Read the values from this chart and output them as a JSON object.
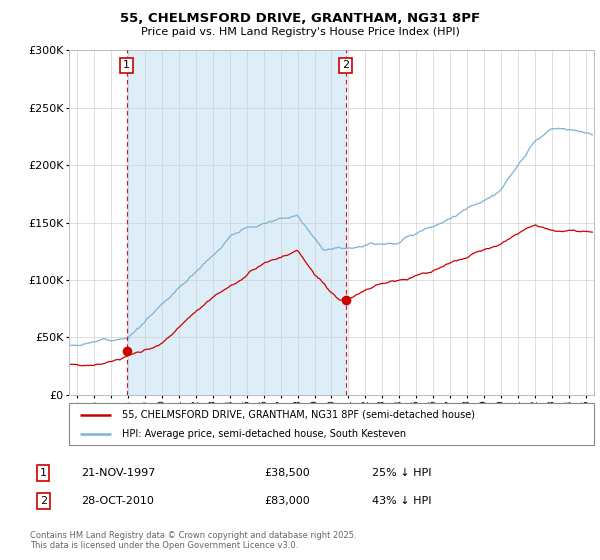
{
  "title": "55, CHELMSFORD DRIVE, GRANTHAM, NG31 8PF",
  "subtitle": "Price paid vs. HM Land Registry's House Price Index (HPI)",
  "legend_line1": "55, CHELMSFORD DRIVE, GRANTHAM, NG31 8PF (semi-detached house)",
  "legend_line2": "HPI: Average price, semi-detached house, South Kesteven",
  "annotation1_date": "21-NOV-1997",
  "annotation1_price": "£38,500",
  "annotation1_hpi": "25% ↓ HPI",
  "annotation2_date": "28-OCT-2010",
  "annotation2_price": "£83,000",
  "annotation2_hpi": "43% ↓ HPI",
  "footer": "Contains HM Land Registry data © Crown copyright and database right 2025.\nThis data is licensed under the Open Government Licence v3.0.",
  "hpi_color": "#7ab3d4",
  "price_color": "#cc0000",
  "bg_shade_color": "#deeef8",
  "vline_color": "#cc0000",
  "purchase1_year": 1997.9,
  "purchase2_year": 2010.83,
  "purchase1_price": 38500,
  "purchase2_price": 83000,
  "ylim": [
    0,
    300000
  ],
  "xlim_start": 1994.5,
  "xlim_end": 2025.5
}
